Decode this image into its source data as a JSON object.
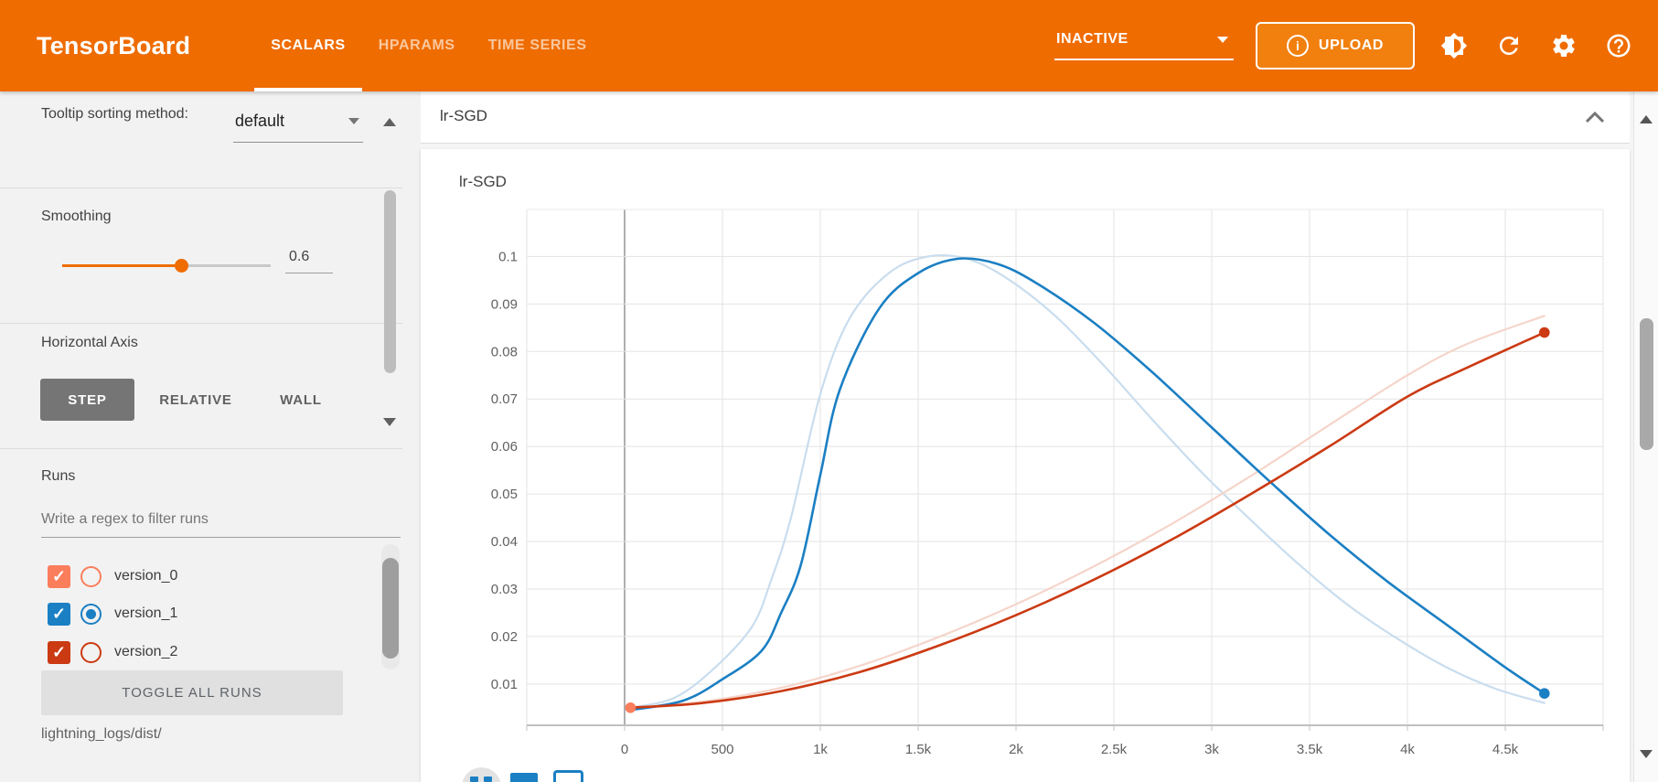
{
  "header": {
    "logo": "TensorBoard",
    "tabs": [
      {
        "label": "SCALARS",
        "active": true
      },
      {
        "label": "HPARAMS",
        "active": false
      },
      {
        "label": "TIME SERIES",
        "active": false
      }
    ],
    "status_select": "INACTIVE",
    "upload_label": "UPLOAD",
    "colors": {
      "header_bg": "#ef6c00"
    }
  },
  "sidebar": {
    "tooltip_sorting": {
      "label": "Tooltip sorting method:",
      "value": "default"
    },
    "smoothing": {
      "label": "Smoothing",
      "value": "0.6"
    },
    "horizontal_axis": {
      "label": "Horizontal Axis",
      "options": [
        "STEP",
        "RELATIVE",
        "WALL"
      ],
      "selected": "STEP"
    },
    "runs": {
      "label": "Runs",
      "filter_placeholder": "Write a regex to filter runs",
      "items": [
        {
          "name": "version_0",
          "color": "#fa7e5c",
          "checked": true,
          "radio_selected": false
        },
        {
          "name": "version_1",
          "color": "#1b7fc3",
          "checked": true,
          "radio_selected": true
        },
        {
          "name": "version_2",
          "color": "#cb3a13",
          "checked": true,
          "radio_selected": false
        }
      ],
      "toggle_label": "TOGGLE ALL RUNS",
      "log_dir": "lightning_logs/dist/"
    }
  },
  "main": {
    "group_title": "lr-SGD",
    "chart_title": "lr-SGD"
  },
  "chart_data": {
    "type": "line",
    "title": "lr-SGD",
    "xlim": [
      -500,
      5000
    ],
    "ylim": [
      0.0013,
      0.1099
    ],
    "grid": true,
    "x_grid_step": 500,
    "y_grid_step": 0.01,
    "smoothing": 0.6,
    "x_ticks": [
      {
        "step": 0,
        "label": "0"
      },
      {
        "step": 500,
        "label": "500"
      },
      {
        "step": 1000,
        "label": "1k"
      },
      {
        "step": 1500,
        "label": "1.5k"
      },
      {
        "step": 2000,
        "label": "2k"
      },
      {
        "step": 2500,
        "label": "2.5k"
      },
      {
        "step": 3000,
        "label": "3k"
      },
      {
        "step": 3500,
        "label": "3.5k"
      },
      {
        "step": 4000,
        "label": "4k"
      },
      {
        "step": 4500,
        "label": "4.5k"
      }
    ],
    "y_ticks": [
      {
        "value": 0.01,
        "label": "0.01"
      },
      {
        "value": 0.02,
        "label": "0.02"
      },
      {
        "value": 0.03,
        "label": "0.03"
      },
      {
        "value": 0.04,
        "label": "0.04"
      },
      {
        "value": 0.05,
        "label": "0.05"
      },
      {
        "value": 0.06,
        "label": "0.06"
      },
      {
        "value": 0.07,
        "label": "0.07"
      },
      {
        "value": 0.08,
        "label": "0.08"
      },
      {
        "value": 0.09,
        "label": "0.09"
      },
      {
        "value": 0.1,
        "label": "0.1"
      }
    ],
    "series": [
      {
        "name": "version_1-raw",
        "run": "version_1",
        "kind": "raw",
        "color": "#c9ddee",
        "width": 2.2,
        "end_dot": false,
        "points": [
          [
            30,
            0.005
          ],
          [
            250,
            0.007
          ],
          [
            450,
            0.013
          ],
          [
            650,
            0.022
          ],
          [
            750,
            0.032
          ],
          [
            850,
            0.045
          ],
          [
            1000,
            0.071
          ],
          [
            1150,
            0.087
          ],
          [
            1350,
            0.0965
          ],
          [
            1550,
            0.1
          ],
          [
            1750,
            0.0995
          ],
          [
            1950,
            0.0955
          ],
          [
            2200,
            0.0875
          ],
          [
            2450,
            0.077
          ],
          [
            2700,
            0.0655
          ],
          [
            2950,
            0.0545
          ],
          [
            3200,
            0.0445
          ],
          [
            3450,
            0.035
          ],
          [
            3700,
            0.0265
          ],
          [
            3950,
            0.0195
          ],
          [
            4200,
            0.0135
          ],
          [
            4450,
            0.009
          ],
          [
            4700,
            0.006
          ]
        ]
      },
      {
        "name": "version_2-raw",
        "run": "version_2",
        "kind": "raw",
        "color": "#f5d5ca",
        "width": 2.2,
        "end_dot": false,
        "points": [
          [
            30,
            0.005
          ],
          [
            400,
            0.0063
          ],
          [
            800,
            0.0092
          ],
          [
            1200,
            0.0138
          ],
          [
            1600,
            0.0198
          ],
          [
            2000,
            0.0268
          ],
          [
            2400,
            0.0348
          ],
          [
            2800,
            0.0438
          ],
          [
            3200,
            0.0538
          ],
          [
            3600,
            0.0645
          ],
          [
            4000,
            0.075
          ],
          [
            4300,
            0.0815
          ],
          [
            4700,
            0.0875
          ]
        ]
      },
      {
        "name": "version_1-smoothed",
        "run": "version_1",
        "kind": "smoothed",
        "color": "#1b7fc3",
        "width": 2.6,
        "end_dot": true,
        "points": [
          [
            30,
            0.0045
          ],
          [
            300,
            0.0065
          ],
          [
            500,
            0.011
          ],
          [
            700,
            0.017
          ],
          [
            800,
            0.025
          ],
          [
            900,
            0.035
          ],
          [
            1000,
            0.054
          ],
          [
            1100,
            0.072
          ],
          [
            1300,
            0.089
          ],
          [
            1500,
            0.0965
          ],
          [
            1700,
            0.0995
          ],
          [
            1900,
            0.0985
          ],
          [
            2100,
            0.0945
          ],
          [
            2400,
            0.086
          ],
          [
            2700,
            0.0755
          ],
          [
            3000,
            0.064
          ],
          [
            3300,
            0.0525
          ],
          [
            3600,
            0.0415
          ],
          [
            3900,
            0.0315
          ],
          [
            4200,
            0.0225
          ],
          [
            4500,
            0.0135
          ],
          [
            4700,
            0.008
          ]
        ]
      },
      {
        "name": "version_2-smoothed",
        "run": "version_2",
        "kind": "smoothed",
        "color": "#cb3a13",
        "width": 2.6,
        "end_dot": true,
        "points": [
          [
            30,
            0.005
          ],
          [
            400,
            0.006
          ],
          [
            800,
            0.0085
          ],
          [
            1200,
            0.0125
          ],
          [
            1600,
            0.018
          ],
          [
            2000,
            0.0245
          ],
          [
            2400,
            0.032
          ],
          [
            2800,
            0.0405
          ],
          [
            3200,
            0.05
          ],
          [
            3600,
            0.06
          ],
          [
            4000,
            0.0705
          ],
          [
            4300,
            0.0765
          ],
          [
            4700,
            0.084
          ]
        ]
      },
      {
        "name": "version_0-point",
        "run": "version_0",
        "kind": "smoothed",
        "color": "#fa7e5c",
        "width": 2.6,
        "end_dot": true,
        "points": [
          [
            30,
            0.005
          ]
        ]
      }
    ]
  }
}
